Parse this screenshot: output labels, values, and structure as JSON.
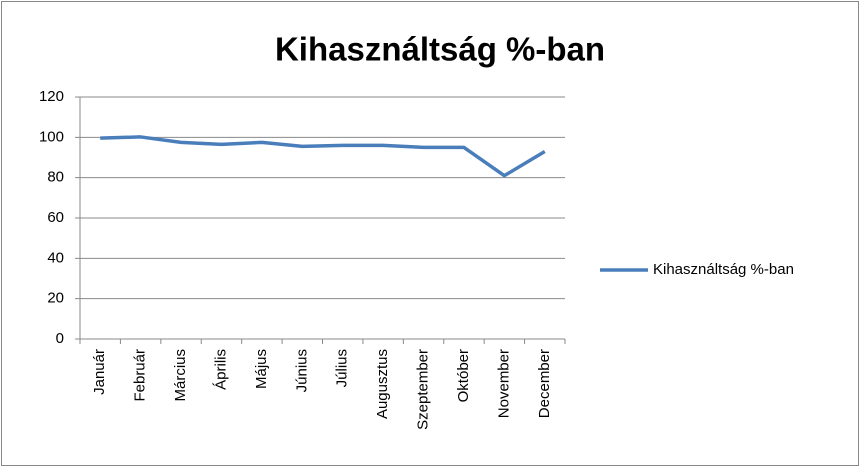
{
  "chart_data": {
    "type": "line",
    "title": "Kihasználtság %-ban",
    "categories": [
      "Január",
      "Február",
      "Március",
      "Április",
      "Május",
      "Június",
      "Július",
      "Augusztus",
      "Szeptember",
      "Október",
      "November",
      "December"
    ],
    "series": [
      {
        "name": "Kihasználtság %-ban",
        "color": "#4a7ebb",
        "values": [
          99.6,
          100.2,
          97.5,
          96.5,
          97.5,
          95.5,
          96,
          96,
          95,
          95,
          81,
          93
        ]
      }
    ],
    "ylim": [
      0,
      120
    ],
    "yticks": [
      0,
      20,
      40,
      60,
      80,
      100,
      120
    ],
    "grid": true,
    "legend": "right"
  }
}
